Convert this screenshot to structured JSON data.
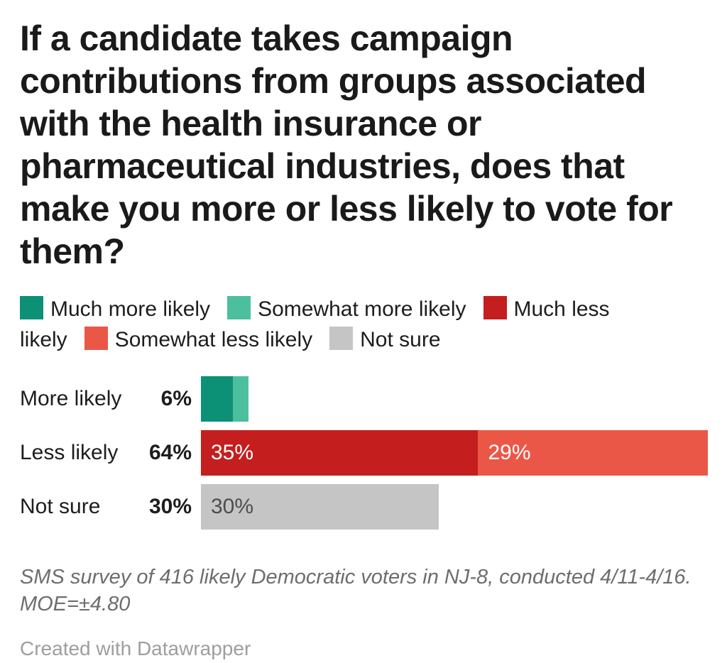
{
  "title": {
    "text": "If a candidate takes campaign contributions from groups associated with the health insurance or pharmaceutical industries, does that make you more or less likely to vote for them?",
    "lines": [
      "If a candidate takes campaign",
      "contributions from groups associated",
      "with the health insurance or",
      "pharmaceutical industries, does that",
      "make you more or less likely to vote for",
      "them?"
    ]
  },
  "legend": {
    "items": [
      {
        "label": "Much more likely",
        "color": "#0c9176"
      },
      {
        "label": "Somewhat more likely",
        "color": "#4cbf9f"
      },
      {
        "label": "Much less likely",
        "color": "#c41e1e"
      },
      {
        "label": "Somewhat less likely",
        "color": "#eb5747"
      },
      {
        "label": "Not sure",
        "color": "#c5c5c5"
      }
    ]
  },
  "chart_data": {
    "type": "bar",
    "orientation": "horizontal",
    "stacked": true,
    "unit": "percent",
    "grid": false,
    "legend_position": "top",
    "xlim": [
      0,
      64
    ],
    "categories": [
      "More likely",
      "Less likely",
      "Not sure"
    ],
    "totals": [
      6,
      64,
      30
    ],
    "total_labels": [
      "6%",
      "64%",
      "30%"
    ],
    "min_label_value": 10,
    "series": [
      {
        "name": "Much more likely",
        "color": "#0c9176",
        "label_color": "#ffffff",
        "values": [
          4,
          0,
          0
        ]
      },
      {
        "name": "Somewhat more likely",
        "color": "#4cbf9f",
        "label_color": "#ffffff",
        "values": [
          2,
          0,
          0
        ]
      },
      {
        "name": "Much less likely",
        "color": "#c41e1e",
        "label_color": "#ffffff",
        "values": [
          0,
          35,
          0
        ]
      },
      {
        "name": "Somewhat less likely",
        "color": "#eb5747",
        "label_color": "#ffffff",
        "values": [
          0,
          29,
          0
        ]
      },
      {
        "name": "Not sure",
        "color": "#c5c5c5",
        "label_color": "#4d4d4d",
        "values": [
          0,
          0,
          30
        ]
      }
    ]
  },
  "footer": {
    "note": "SMS survey of 416 likely Democratic voters in NJ-8, conducted 4/11-4/16. MOE=±4.80",
    "note_lines": [
      "SMS survey of 416 likely Democratic voters in NJ-8, conducted 4/11-4/16.",
      "MOE=±4.80"
    ],
    "credit": "Created with Datawrapper"
  },
  "colors": {
    "title_text": "#1a1a1a",
    "label_text": "#1d1d1d",
    "note_text": "#6d6d6d",
    "credit_text": "#9e9e9e",
    "background": "#ffffff"
  }
}
